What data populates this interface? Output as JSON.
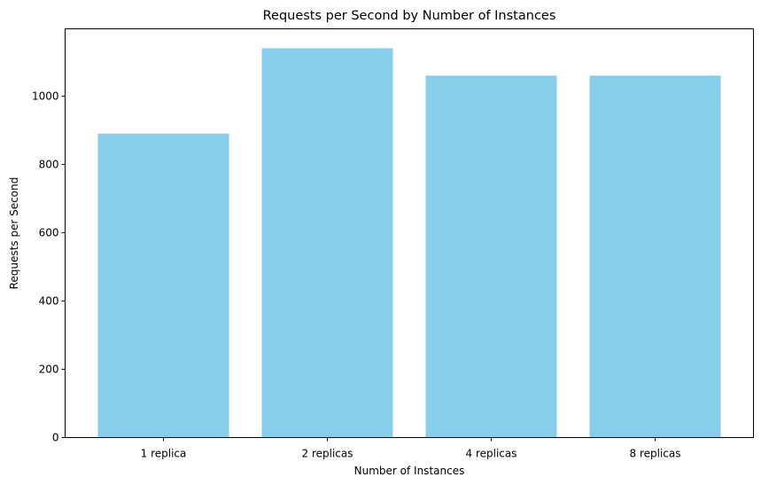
{
  "chart_data": {
    "type": "bar",
    "title": "Requests per Second by Number of Instances",
    "xlabel": "Number of Instances",
    "ylabel": "Requests per Second",
    "categories": [
      "1 replica",
      "2 replicas",
      "4 replicas",
      "8 replicas"
    ],
    "values": [
      890,
      1140,
      1060,
      1060
    ],
    "ylim": [
      0,
      1197
    ],
    "yticks": [
      0,
      200,
      400,
      600,
      800,
      1000
    ],
    "bar_color": "#87CEEB",
    "grid": false,
    "legend": "none"
  }
}
